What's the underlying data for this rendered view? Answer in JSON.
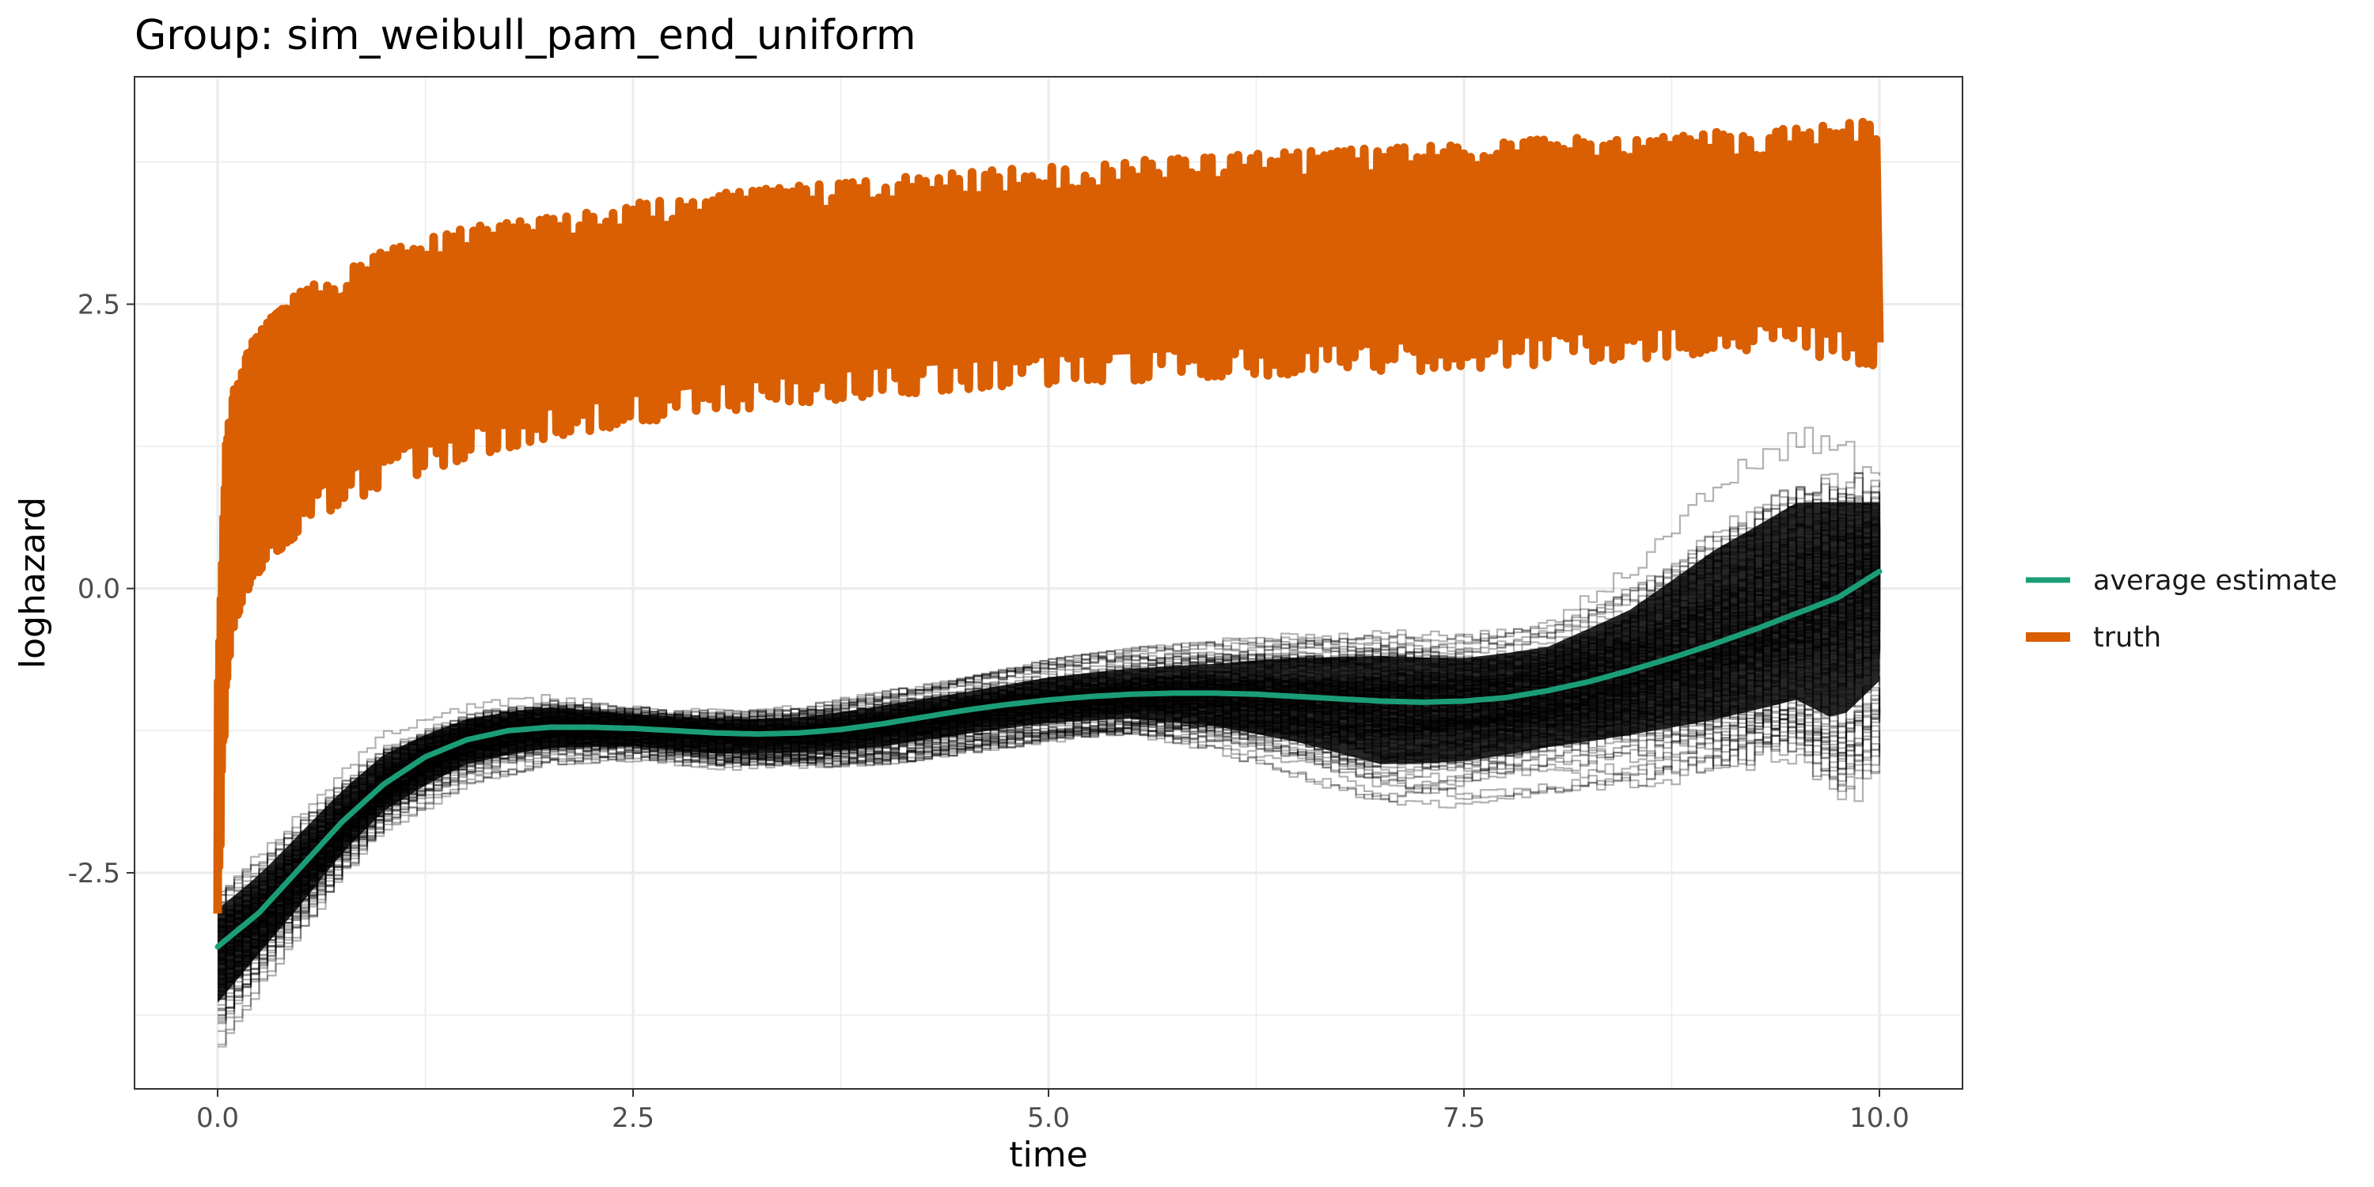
{
  "chart_data": {
    "type": "line",
    "title": "Group: sim_weibull_pam_end_uniform",
    "xlabel": "time",
    "ylabel": "loghazard",
    "xlim": [
      -0.5,
      10.5
    ],
    "ylim": [
      -4.4,
      4.5
    ],
    "x_ticks": [
      0,
      2.5,
      5,
      7.5,
      10
    ],
    "x_tick_labels": [
      "0.0",
      "2.5",
      "5.0",
      "7.5",
      "10.0"
    ],
    "y_ticks": [
      -2.5,
      0,
      2.5
    ],
    "y_tick_labels": [
      "-2.5",
      "0.0",
      "2.5"
    ],
    "grid": true,
    "legend_position": "right",
    "colors": {
      "average_estimate": "#1b9e77",
      "truth": "#d95f02",
      "simulation_lines": "#000000",
      "grid": "#ebebeb",
      "panel_border": "#333333"
    },
    "series": [
      {
        "name": "average estimate",
        "x": [
          0,
          0.25,
          0.5,
          0.75,
          1.0,
          1.25,
          1.5,
          1.75,
          2.0,
          2.25,
          2.5,
          2.75,
          3.0,
          3.25,
          3.5,
          3.75,
          4.0,
          4.25,
          4.5,
          4.75,
          5.0,
          5.25,
          5.5,
          5.75,
          6.0,
          6.25,
          6.5,
          6.75,
          7.0,
          7.25,
          7.5,
          7.75,
          8.0,
          8.25,
          8.5,
          8.75,
          9.0,
          9.25,
          9.5,
          9.75,
          10.0
        ],
        "y": [
          -3.15,
          -2.85,
          -2.45,
          -2.05,
          -1.72,
          -1.48,
          -1.33,
          -1.25,
          -1.22,
          -1.22,
          -1.23,
          -1.25,
          -1.27,
          -1.28,
          -1.27,
          -1.24,
          -1.19,
          -1.13,
          -1.07,
          -1.02,
          -0.98,
          -0.95,
          -0.93,
          -0.92,
          -0.92,
          -0.93,
          -0.95,
          -0.97,
          -0.99,
          -1.0,
          -0.99,
          -0.96,
          -0.9,
          -0.82,
          -0.72,
          -0.61,
          -0.49,
          -0.36,
          -0.22,
          -0.08,
          0.15
        ]
      },
      {
        "name": "truth",
        "band_upper": {
          "x": [
            0,
            0.05,
            0.1,
            0.2,
            0.3,
            0.5,
            0.75,
            1.0,
            1.5,
            2.0,
            2.5,
            3.0,
            3.5,
            4.0,
            4.5,
            5.0,
            5.5,
            6.0,
            6.5,
            7.0,
            7.5,
            8.0,
            8.5,
            9.0,
            9.5,
            10.0
          ],
          "y": [
            -1.0,
            1.3,
            1.75,
            2.15,
            2.35,
            2.62,
            2.82,
            2.97,
            3.17,
            3.3,
            3.39,
            3.47,
            3.54,
            3.6,
            3.66,
            3.71,
            3.76,
            3.8,
            3.84,
            3.88,
            3.91,
            3.95,
            3.98,
            4.01,
            4.05,
            4.12
          ]
        },
        "band_lower": {
          "x": [
            0,
            0.05,
            0.1,
            0.2,
            0.3,
            0.5,
            0.75,
            1.0,
            1.5,
            2.0,
            2.5,
            3.0,
            3.5,
            4.0,
            4.5,
            5.0,
            5.5,
            6.0,
            6.5,
            7.0,
            7.5,
            8.0,
            8.5,
            9.0,
            9.5,
            10.0
          ],
          "y": [
            -2.9,
            -0.9,
            -0.3,
            0.05,
            0.25,
            0.5,
            0.72,
            0.9,
            1.15,
            1.33,
            1.45,
            1.55,
            1.63,
            1.7,
            1.75,
            1.8,
            1.83,
            1.86,
            1.88,
            1.9,
            1.93,
            1.97,
            2.02,
            2.05,
            2.07,
            1.95
          ]
        }
      }
    ],
    "simulation_band": {
      "x": [
        0,
        0.25,
        0.5,
        0.75,
        1.0,
        1.5,
        2.0,
        2.5,
        3.0,
        3.5,
        4.0,
        4.5,
        5.0,
        5.5,
        6.0,
        6.5,
        7.0,
        7.5,
        8.0,
        8.5,
        9.0,
        9.5,
        9.75,
        10.0
      ],
      "upper": [
        -2.55,
        -2.25,
        -1.9,
        -1.55,
        -1.25,
        -1.0,
        -0.9,
        -1.0,
        -1.05,
        -1.02,
        -0.9,
        -0.78,
        -0.62,
        -0.52,
        -0.45,
        -0.33,
        -0.27,
        -0.3,
        -0.2,
        0.25,
        1.0,
        1.55,
        1.45,
        1.25
      ],
      "lower": [
        -4.05,
        -3.5,
        -3.05,
        -2.55,
        -2.15,
        -1.72,
        -1.55,
        -1.52,
        -1.6,
        -1.58,
        -1.55,
        -1.45,
        -1.35,
        -1.32,
        -1.45,
        -1.68,
        -2.0,
        -1.95,
        -1.8,
        -1.75,
        -1.7,
        -1.6,
        -2.05,
        -1.6
      ]
    },
    "legend": [
      {
        "label": "average estimate",
        "color": "#1b9e77"
      },
      {
        "label": "truth",
        "color": "#d95f02"
      }
    ]
  }
}
